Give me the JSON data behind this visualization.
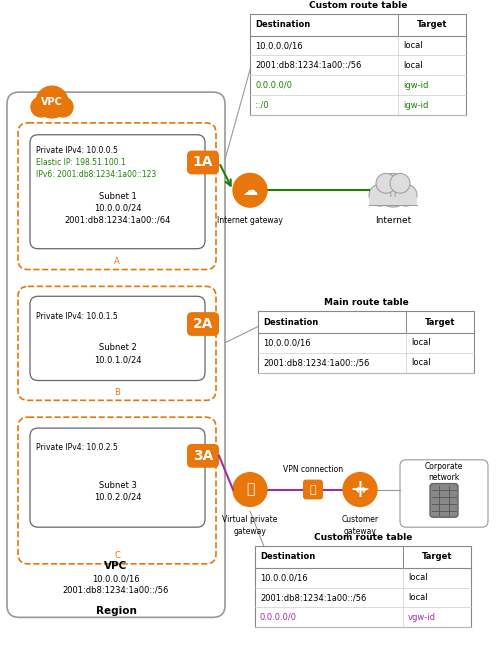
{
  "orange": "#E8760A",
  "green": "#1D8102",
  "purple": "#9B30A2",
  "gray_border": "#888888",
  "dark_border": "#555555",
  "route_table1": {
    "title": "Custom route table",
    "rows": [
      [
        "10.0.0.0/16",
        "local",
        "black",
        "black"
      ],
      [
        "2001:db8:1234:1a00::/56",
        "local",
        "black",
        "black"
      ],
      [
        "0.0.0.0/0",
        "igw-id",
        "#1D8102",
        "#1D8102"
      ],
      [
        "::/0",
        "igw-id",
        "#1D8102",
        "#1D8102"
      ]
    ]
  },
  "route_table2": {
    "title": "Main route table",
    "rows": [
      [
        "10.0.0.0/16",
        "local",
        "black",
        "black"
      ],
      [
        "2001:db8:1234:1a00::/56",
        "local",
        "black",
        "black"
      ]
    ]
  },
  "route_table3": {
    "title": "Custom route table",
    "rows": [
      [
        "10.0.0.0/16",
        "local",
        "black",
        "black"
      ],
      [
        "2001:db8:1234:1a00::/56",
        "local",
        "black",
        "black"
      ],
      [
        "0.0.0.0/0",
        "vgw-id",
        "#9B30A2",
        "#9B30A2"
      ]
    ]
  },
  "vpc_label": "VPC",
  "region_label": "Region",
  "vpc_cidr": "10.0.0.0/16",
  "vpc_ipv6": "2001:db8:1234:1a00::/56",
  "subnet1": {
    "label": "1A",
    "private_ip": "Private IPv4: 10.0.0.5",
    "elastic_ip": "Elastic IP: 198.51.100.1",
    "ipv6": "IPv6: 2001:db8:1234:1a00::123",
    "subnet_label": "Subnet 1",
    "cidr": "10.0.0.0/24",
    "ipv6_cidr": "2001:db8:1234:1a00::/64",
    "az": "A"
  },
  "subnet2": {
    "label": "2A",
    "private_ip": "Private IPv4: 10.0.1.5",
    "subnet_label": "Subnet 2",
    "cidr": "10.0.1.0/24",
    "az": "B"
  },
  "subnet3": {
    "label": "3A",
    "private_ip": "Private IPv4: 10.0.2.5",
    "subnet_label": "Subnet 3",
    "cidr": "10.0.2.0/24",
    "az": "C"
  }
}
